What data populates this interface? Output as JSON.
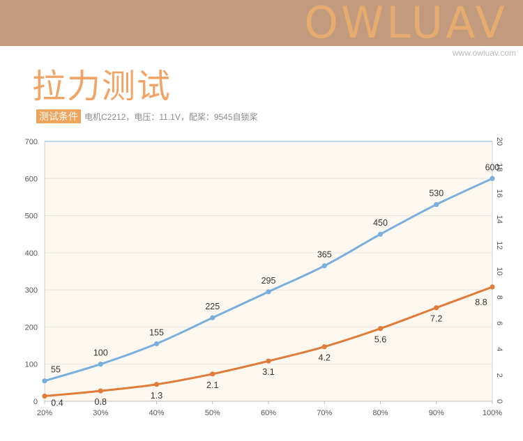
{
  "header": {
    "brand": "OWLUAV",
    "site": "www.owluav.com"
  },
  "page_title": "拉力测试",
  "conditions": {
    "badge": "测试条件",
    "text": "电机C2212，电压：11.1V，配桨：9545自锁桨"
  },
  "colors": {
    "banner": "#c29b7f",
    "brand": "#e6ab6e",
    "title": "#f2a466",
    "series_blue": "#7aaedc",
    "series_orange": "#e07b39",
    "plot_bg": "#fdf8ef"
  },
  "chart_data": {
    "type": "line",
    "categories": [
      "20%",
      "30%",
      "40%",
      "50%",
      "60%",
      "70%",
      "80%",
      "90%",
      "100%"
    ],
    "y_left": {
      "ylim": [
        0,
        700
      ],
      "ticks": [
        "0",
        "100",
        "200",
        "300",
        "400",
        "500",
        "600",
        "700"
      ]
    },
    "y_right": {
      "ylim": [
        0,
        20
      ],
      "ticks": [
        "0",
        "2",
        "4",
        "6",
        "8",
        "10",
        "12",
        "14",
        "16",
        "18",
        "20"
      ]
    },
    "series": [
      {
        "axis": "left",
        "color": "#7aaedc",
        "values": [
          55,
          100,
          155,
          225,
          295,
          365,
          450,
          530,
          600
        ],
        "labels": [
          "55",
          "100",
          "155",
          "225",
          "295",
          "365",
          "450",
          "530",
          "600"
        ]
      },
      {
        "axis": "right",
        "color": "#e07b39",
        "values": [
          0.4,
          0.8,
          1.3,
          2.1,
          3.1,
          4.2,
          5.6,
          7.2,
          8.8
        ],
        "labels": [
          "0.4",
          "0.8",
          "1.3",
          "2.1",
          "3.1",
          "4.2",
          "5.6",
          "7.2",
          "8.8"
        ]
      }
    ],
    "grid": true,
    "legend": "none"
  }
}
